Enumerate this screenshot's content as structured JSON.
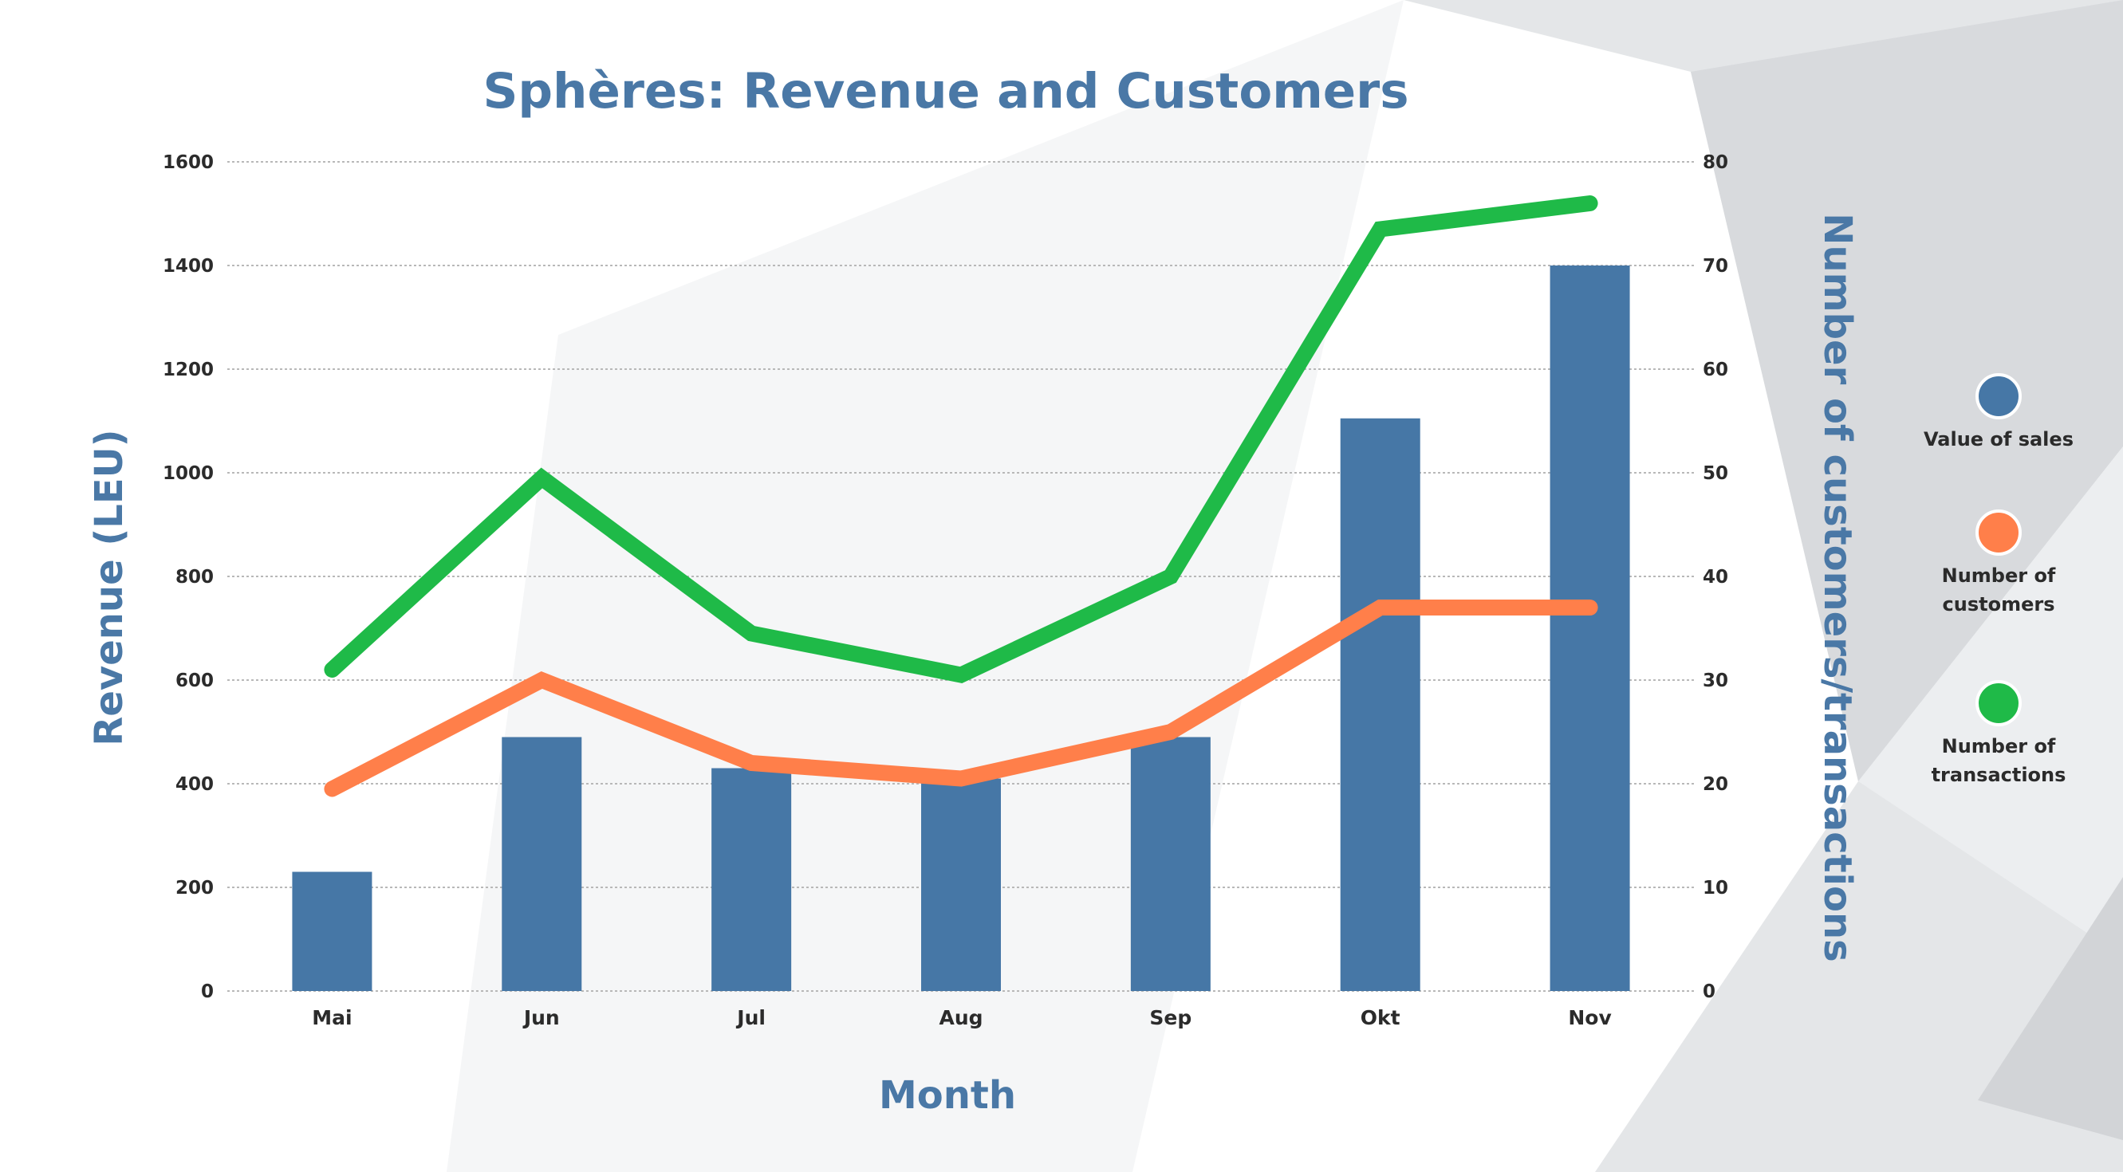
{
  "colors": {
    "title": "#4a78a6",
    "bar": "#4677a6",
    "customers": "#ff7f4a",
    "transactions": "#1fba48",
    "grid": "#b8b8b8",
    "bg_shade": "#d9dbdd"
  },
  "chart_data": {
    "type": "bar",
    "title": "Sphères: Revenue and Customers",
    "xlabel": "Month",
    "ylabel": "Revenue (LEU)",
    "y2label": "Number of customers/transactions",
    "categories": [
      "Mai",
      "Jun",
      "Jul",
      "Aug",
      "Sep",
      "Okt",
      "Nov"
    ],
    "ylim": [
      0,
      1600
    ],
    "y2lim": [
      0,
      80
    ],
    "yticks": [
      "0",
      "200",
      "400",
      "600",
      "800",
      "1000",
      "1200",
      "1400",
      "1600"
    ],
    "y2ticks": [
      "0",
      "10",
      "20",
      "30",
      "40",
      "50",
      "60",
      "70",
      "80"
    ],
    "grid": true,
    "legend_position": "right",
    "series": [
      {
        "name": "Value of sales",
        "type": "bar",
        "axis": "left",
        "values": [
          230,
          490,
          430,
          410,
          490,
          1105,
          1400
        ]
      },
      {
        "name": "Number of customers",
        "type": "line",
        "axis": "right",
        "values": [
          19.5,
          30,
          22,
          20.5,
          25,
          37,
          37
        ]
      },
      {
        "name": "Number of transactions",
        "type": "line",
        "axis": "right",
        "values": [
          31,
          49.5,
          34.5,
          30.5,
          40,
          73.5,
          76
        ]
      }
    ]
  }
}
